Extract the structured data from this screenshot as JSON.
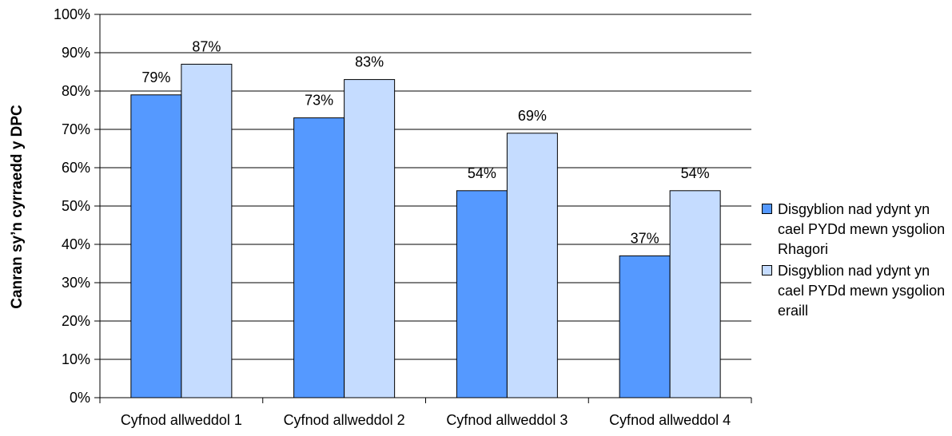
{
  "chart_data": {
    "type": "bar",
    "categories": [
      "Cyfnod allweddol 1",
      "Cyfnod allweddol 2",
      "Cyfnod allweddol 3",
      "Cyfnod allweddol 4"
    ],
    "series": [
      {
        "name": "Disgyblion nad ydynt yn cael PYDd mewn ysgolion Rhagori",
        "values": [
          79,
          73,
          54,
          37
        ],
        "labels": [
          "79%",
          "73%",
          "54%",
          "37%"
        ],
        "color": "#5599ff"
      },
      {
        "name": "Disgyblion nad ydynt yn cael PYDd mewn ysgolion eraill",
        "values": [
          87,
          83,
          69,
          54
        ],
        "labels": [
          "87%",
          "83%",
          "69%",
          "54%"
        ],
        "color": "#c5dcff"
      }
    ],
    "title": "",
    "xlabel": "",
    "ylabel": "Canran sy’n cyrraedd y DPC",
    "ylim": [
      0,
      100
    ],
    "yticks": [
      0,
      10,
      20,
      30,
      40,
      50,
      60,
      70,
      80,
      90,
      100
    ],
    "ytick_labels": [
      "0%",
      "10%",
      "20%",
      "30%",
      "40%",
      "50%",
      "60%",
      "70%",
      "80%",
      "90%",
      "100%"
    ],
    "grid": true,
    "legend_position": "right"
  }
}
